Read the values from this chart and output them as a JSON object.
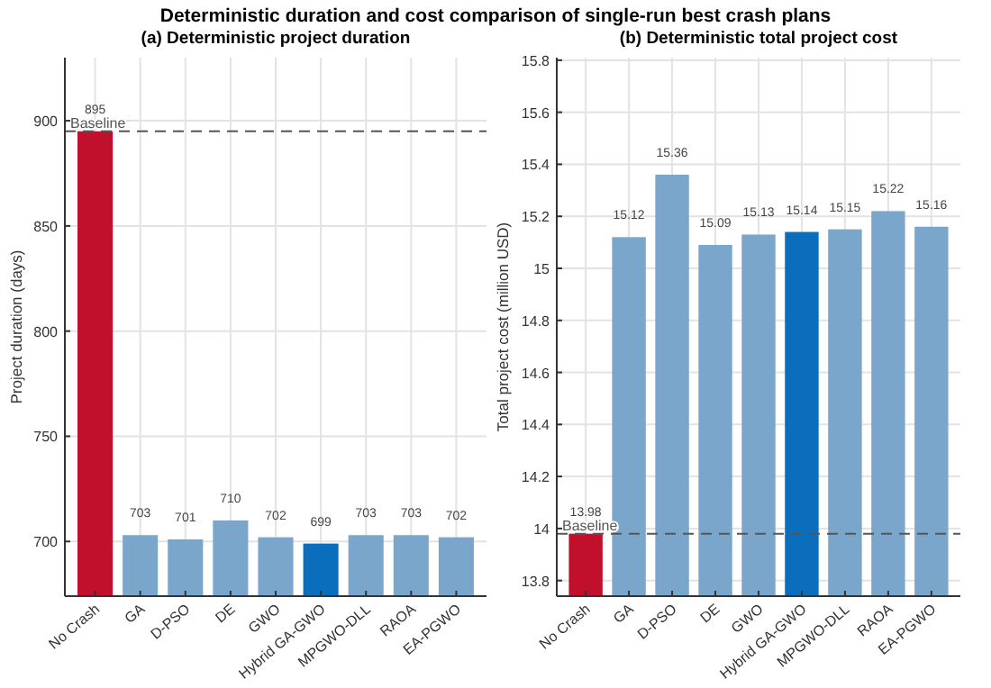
{
  "chart_data": [
    {
      "type": "bar",
      "title": "(a) Deterministic project duration",
      "ylabel": "Project duration (days)",
      "annotations": [
        "Deterministic duration and cost comparison of single-run best crash plans"
      ],
      "categories": [
        "No Crash",
        "GA",
        "D-PSO",
        "DE",
        "GWO",
        "Hybrid GA-GWO",
        "MPGWO-DLL",
        "RAOA",
        "EA-PGWO"
      ],
      "values": [
        895,
        703,
        701,
        710,
        702,
        699,
        703,
        703,
        702
      ],
      "colors": [
        "#c0102c",
        "#7aa6cc",
        "#7aa6cc",
        "#7aa6cc",
        "#7aa6cc",
        "#0a6ebd",
        "#7aa6cc",
        "#7aa6cc",
        "#7aa6cc"
      ],
      "ylim": [
        674,
        930
      ],
      "yticks": [
        700,
        750,
        800,
        850,
        900
      ],
      "grid": true,
      "data_labels": true,
      "ref_lines": [
        {
          "axis": "y",
          "value": 895,
          "label": "Baseline",
          "color": "#555555",
          "line_style": "dashed"
        }
      ]
    },
    {
      "type": "bar",
      "title": "(b) Deterministic total project cost",
      "ylabel": "Total project cost (million USD)",
      "categories": [
        "No Crash",
        "GA",
        "D-PSO",
        "DE",
        "GWO",
        "Hybrid GA-GWO",
        "MPGWO-DLL",
        "RAOA",
        "EA-PGWO"
      ],
      "values": [
        13.98,
        15.12,
        15.36,
        15.09,
        15.13,
        15.14,
        15.15,
        15.22,
        15.16
      ],
      "colors": [
        "#c0102c",
        "#7aa6cc",
        "#7aa6cc",
        "#7aa6cc",
        "#7aa6cc",
        "#0a6ebd",
        "#7aa6cc",
        "#7aa6cc",
        "#7aa6cc"
      ],
      "ylim": [
        13.74,
        15.81
      ],
      "yticks": [
        {
          "value": 13.8,
          "label": "13.8"
        },
        {
          "value": 14,
          "label": "14"
        },
        {
          "value": 14.2,
          "label": "14.2"
        },
        {
          "value": 14.4,
          "label": "14.4"
        },
        {
          "value": 14.6,
          "label": "14.6"
        },
        {
          "value": 14.8,
          "label": "14.8"
        },
        {
          "value": 15,
          "label": "15"
        },
        {
          "value": 15.2,
          "label": "15.2"
        },
        {
          "value": 15.4,
          "label": "15.4"
        },
        {
          "value": 15.6,
          "label": "15.6"
        },
        {
          "value": 15.8,
          "label": "15.8"
        }
      ],
      "grid": true,
      "data_labels": true,
      "ref_lines": [
        {
          "axis": "y",
          "value": 13.98,
          "label": "Baseline",
          "color": "#555555",
          "line_style": "dashed"
        }
      ]
    }
  ]
}
